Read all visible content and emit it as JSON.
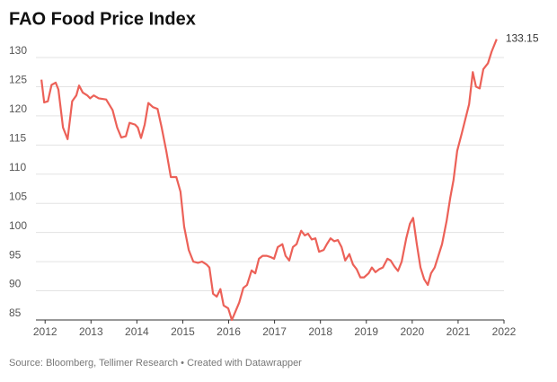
{
  "chart_data": {
    "type": "line",
    "title": "FAO Food Price Index",
    "source": "Source: Bloomberg, Tellimer Research • Created with Datawrapper",
    "color": "#ec6158",
    "x": [
      2011.92,
      2011.98,
      2012.06,
      2012.14,
      2012.23,
      2012.29,
      2012.39,
      2012.49,
      2012.59,
      2012.68,
      2012.74,
      2012.82,
      2012.92,
      2012.98,
      2013.06,
      2013.17,
      2013.33,
      2013.47,
      2013.57,
      2013.66,
      2013.76,
      2013.84,
      2013.96,
      2014.02,
      2014.09,
      2014.17,
      2014.25,
      2014.35,
      2014.45,
      2014.54,
      2014.64,
      2014.74,
      2014.86,
      2014.95,
      2015.03,
      2015.13,
      2015.23,
      2015.33,
      2015.42,
      2015.52,
      2015.58,
      2015.66,
      2015.74,
      2015.82,
      2015.89,
      2015.99,
      2016.07,
      2016.15,
      2016.23,
      2016.32,
      2016.4,
      2016.5,
      2016.58,
      2016.66,
      2016.74,
      2016.83,
      2016.91,
      2016.99,
      2017.07,
      2017.17,
      2017.24,
      2017.32,
      2017.4,
      2017.48,
      2017.58,
      2017.66,
      2017.73,
      2017.81,
      2017.89,
      2017.97,
      2018.07,
      2018.14,
      2018.22,
      2018.3,
      2018.38,
      2018.46,
      2018.54,
      2018.63,
      2018.71,
      2018.79,
      2018.87,
      2018.95,
      2019.05,
      2019.12,
      2019.2,
      2019.28,
      2019.36,
      2019.46,
      2019.53,
      2019.61,
      2019.69,
      2019.77,
      2019.87,
      2019.95,
      2020.02,
      2020.1,
      2020.18,
      2020.26,
      2020.34,
      2020.41,
      2020.49,
      2020.57,
      2020.65,
      2020.75,
      2020.83,
      2020.9,
      2020.98,
      2021.08,
      2021.16,
      2021.24,
      2021.32,
      2021.39,
      2021.47,
      2021.55,
      2021.65,
      2021.73,
      2021.84
    ],
    "values": [
      126.2,
      122.3,
      122.5,
      125.3,
      125.7,
      124.5,
      118,
      116,
      122.5,
      123.5,
      125.2,
      124,
      123.5,
      123,
      123.5,
      123,
      122.8,
      121,
      118,
      116.3,
      116.5,
      118.8,
      118.5,
      118,
      116.2,
      118.5,
      122.2,
      121.5,
      121.2,
      118,
      114,
      109.5,
      109.5,
      107,
      101,
      97,
      95,
      94.8,
      95,
      94.5,
      94,
      89.5,
      89,
      90.3,
      87.5,
      87,
      85,
      86.5,
      88,
      90.5,
      91,
      93.5,
      93,
      95.5,
      96,
      96,
      95.8,
      95.5,
      97.5,
      98,
      96,
      95.2,
      97.5,
      98,
      100.3,
      99.5,
      99.8,
      98.8,
      99,
      96.7,
      97,
      98,
      99,
      98.5,
      98.7,
      97.5,
      95.2,
      96.3,
      94.5,
      93.7,
      92.3,
      92.3,
      93,
      94,
      93.2,
      93.7,
      94,
      95.5,
      95.2,
      94.2,
      93.4,
      95,
      99,
      101.5,
      102.5,
      98,
      94,
      92,
      91,
      93,
      94,
      96,
      98,
      102,
      106,
      109,
      114,
      117,
      119.5,
      122,
      127.5,
      125,
      124.7,
      128,
      129,
      131,
      133.15
    ],
    "xlim": [
      2011.8,
      2022
    ],
    "xticks": [
      2012,
      2013,
      2014,
      2015,
      2016,
      2017,
      2018,
      2019,
      2020,
      2021,
      2022
    ],
    "ylim": [
      85,
      130
    ],
    "yticks": [
      85,
      90,
      95,
      100,
      105,
      110,
      115,
      120,
      125,
      130
    ],
    "grid": true
  }
}
